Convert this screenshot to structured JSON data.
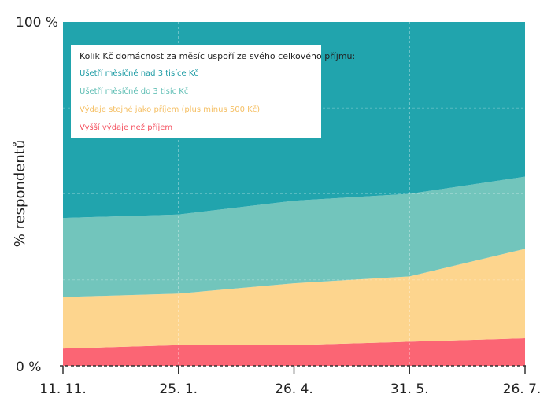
{
  "chart_data": {
    "type": "area",
    "stacked": true,
    "normalized_percent": true,
    "ylabel": "% respondentů",
    "xlabel": "",
    "ylim": [
      0,
      100
    ],
    "y_ticks": [
      "0 %",
      "100 %"
    ],
    "categories": [
      "11. 11.",
      "25. 1.",
      "26. 4.",
      "31. 5.",
      "26. 7."
    ],
    "grid": "dashed vertical lines at each category",
    "legend_position": "top-left",
    "legend_title": "Kolik Kč domácnost za měsíc uspoří ze svého celkového příjmu:",
    "series": [
      {
        "name": "Vyšší výdaje než příjem",
        "color": "#fb6574",
        "values": [
          5,
          6,
          6,
          7,
          8
        ]
      },
      {
        "name": "Výdaje stejné jako příjem (plus minus 500 Kč)",
        "color": "#fdd58e",
        "values": [
          15,
          15,
          18,
          19,
          26
        ]
      },
      {
        "name": "Ušetří měsíčně do 3 tisíc Kč",
        "color": "#72c5bc",
        "values": [
          23,
          23,
          24,
          24,
          21
        ]
      },
      {
        "name": "Ušetří měsíčně nad 3 tisíce Kč",
        "color": "#21a4ad",
        "values": [
          57,
          56,
          52,
          50,
          45
        ]
      }
    ]
  }
}
